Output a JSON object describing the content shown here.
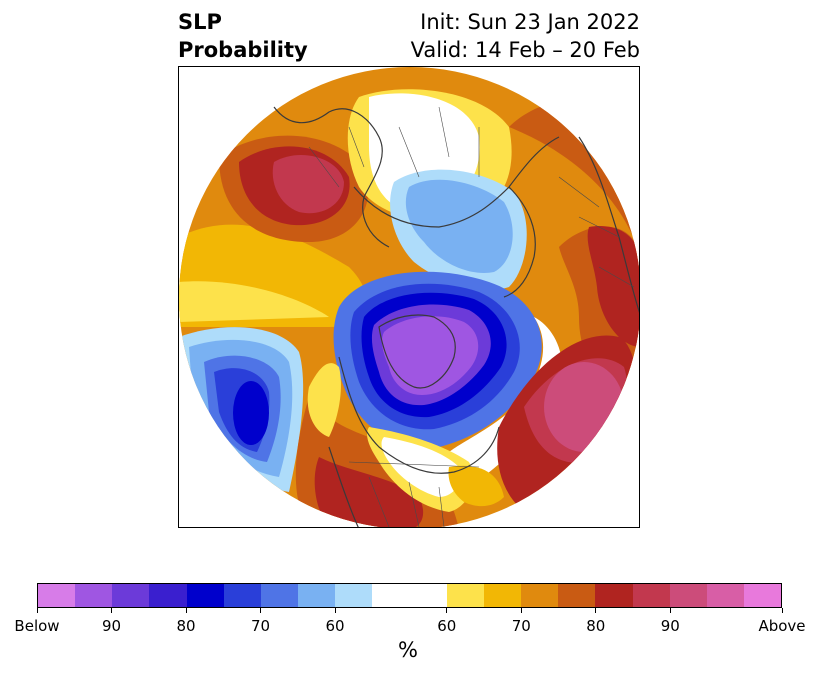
{
  "header": {
    "title_line1": "SLP",
    "title_line2": "Probability",
    "init": "Init: Sun 23 Jan 2022",
    "valid": "Valid: 14 Feb – 20 Feb"
  },
  "colorbar": {
    "colors": [
      "#d77ce8",
      "#9f56e2",
      "#6c3ad9",
      "#3a1fcf",
      "#0000cc",
      "#2a3fd9",
      "#4f74e6",
      "#79b1f2",
      "#aedcfa",
      "#ffffff",
      "#ffffff",
      "#fde24b",
      "#f2b705",
      "#e08a0e",
      "#c95b13",
      "#b02420",
      "#c2384e",
      "#cc4c7a",
      "#d85ea6",
      "#e879dc"
    ],
    "tick_labels": [
      "Below",
      "90",
      "80",
      "70",
      "60",
      "60",
      "70",
      "80",
      "90",
      "Above"
    ],
    "unit": "%"
  },
  "map": {
    "projection": "north-polar-stereographic",
    "palette": {
      "land_lines": "#3a3a3a",
      "orange": "#e08a0e",
      "dark_orange": "#c95b13",
      "yellow": "#f2b705",
      "red": "#b02420",
      "crimson": "#c2384e",
      "light_blue": "#79b1f2",
      "pale_blue": "#aedcfa",
      "blue": "#2a3fd9",
      "navy": "#0000cc",
      "purple": "#9f56e2"
    }
  }
}
